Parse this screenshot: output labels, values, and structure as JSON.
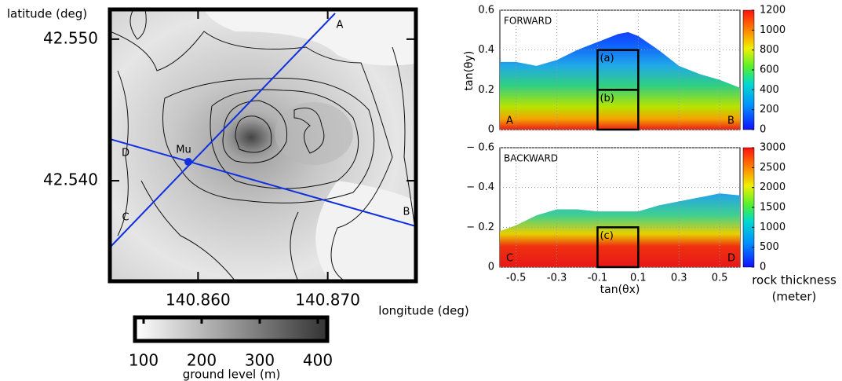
{
  "map": {
    "y_label": "latitude (deg)",
    "x_label": "longitude (deg)",
    "xlim": [
      140.8532,
      140.8768
    ],
    "ylim": [
      42.5329,
      42.5521
    ],
    "xticks": [
      {
        "value": 140.86,
        "label": "140.860"
      },
      {
        "value": 140.87,
        "label": "140.870"
      }
    ],
    "yticks": [
      {
        "value": 42.55,
        "label": "42.550"
      },
      {
        "value": 42.54,
        "label": "42.540"
      }
    ],
    "point_labels": [
      "A",
      "B",
      "C",
      "D",
      "Mu"
    ],
    "colorbar": {
      "label": "ground level (m)",
      "lim": [
        100,
        400
      ],
      "ticks": [
        100,
        200,
        300,
        400
      ]
    }
  },
  "shared_x": {
    "label": "tan(θx)",
    "xlim": [
      -0.58,
      0.6
    ],
    "xticks": [
      -0.5,
      -0.3,
      -0.1,
      0.1,
      0.3,
      0.5
    ]
  },
  "forward": {
    "type": "area",
    "title": "FORWARD",
    "y_label": "tan(θy)",
    "corner_labels": [
      "A",
      "B"
    ],
    "ylim": [
      0,
      0.6
    ],
    "yticks": [
      0,
      0.2,
      0.4,
      0.6
    ],
    "x": [
      -0.58,
      -0.5,
      -0.4,
      -0.3,
      -0.2,
      -0.1,
      0,
      0.05,
      0.1,
      0.2,
      0.3,
      0.4,
      0.5,
      0.6
    ],
    "values": [
      0.34,
      0.34,
      0.32,
      0.35,
      0.4,
      0.44,
      0.48,
      0.49,
      0.47,
      0.4,
      0.32,
      0.28,
      0.25,
      0.21
    ],
    "boxes": [
      {
        "label": "(a)",
        "x": [
          -0.1,
          0.1
        ],
        "y": [
          0.2,
          0.4
        ]
      },
      {
        "label": "(b)",
        "x": [
          -0.1,
          0.1
        ],
        "y": [
          0,
          0.2
        ]
      }
    ],
    "colorbar": {
      "lim": [
        0,
        1200
      ],
      "ticks": [
        0,
        200,
        400,
        600,
        800,
        1000,
        1200
      ]
    }
  },
  "backward": {
    "type": "area",
    "title": "BACKWARD",
    "corner_labels": [
      "C",
      "D"
    ],
    "ylim": [
      0,
      -0.6
    ],
    "yticks": [
      {
        "value": -0.6,
        "label": "− 0.6"
      },
      {
        "value": -0.4,
        "label": "− 0.4"
      },
      {
        "value": -0.2,
        "label": "− 0.2"
      },
      0
    ],
    "x": [
      -0.58,
      -0.5,
      -0.4,
      -0.3,
      -0.2,
      -0.1,
      0,
      0.1,
      0.2,
      0.3,
      0.4,
      0.5,
      0.6
    ],
    "values": [
      -0.18,
      -0.21,
      -0.26,
      -0.29,
      -0.29,
      -0.28,
      -0.28,
      -0.28,
      -0.31,
      -0.33,
      -0.35,
      -0.37,
      -0.36
    ],
    "boxes": [
      {
        "label": "(c)",
        "x": [
          -0.1,
          0.1
        ],
        "y": [
          0,
          -0.2
        ]
      }
    ],
    "colorbar": {
      "lim": [
        0,
        3000
      ],
      "ticks": [
        0,
        500,
        1000,
        1500,
        2000,
        2500,
        3000
      ],
      "label": [
        "rock thickness",
        "(meter)"
      ]
    }
  }
}
